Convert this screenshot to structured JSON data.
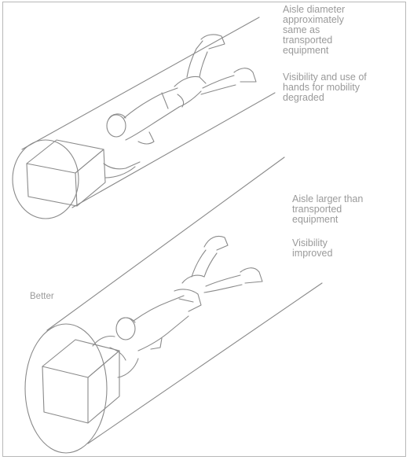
{
  "panel_top": {
    "caption_1": "Aisle diameter\napproximately\nsame as\ntransported\nequipment",
    "caption_2": "Visibility and use of\nhands for mobility\ndegraded"
  },
  "panel_bottom": {
    "caption_1": "Aisle larger than\ntransported\nequipment",
    "caption_2": "Visibility\nimproved",
    "rating": "Better"
  },
  "colors": {
    "line": "#8a8a8a",
    "text": "#9a9a9a",
    "border": "#b8b8b8"
  }
}
